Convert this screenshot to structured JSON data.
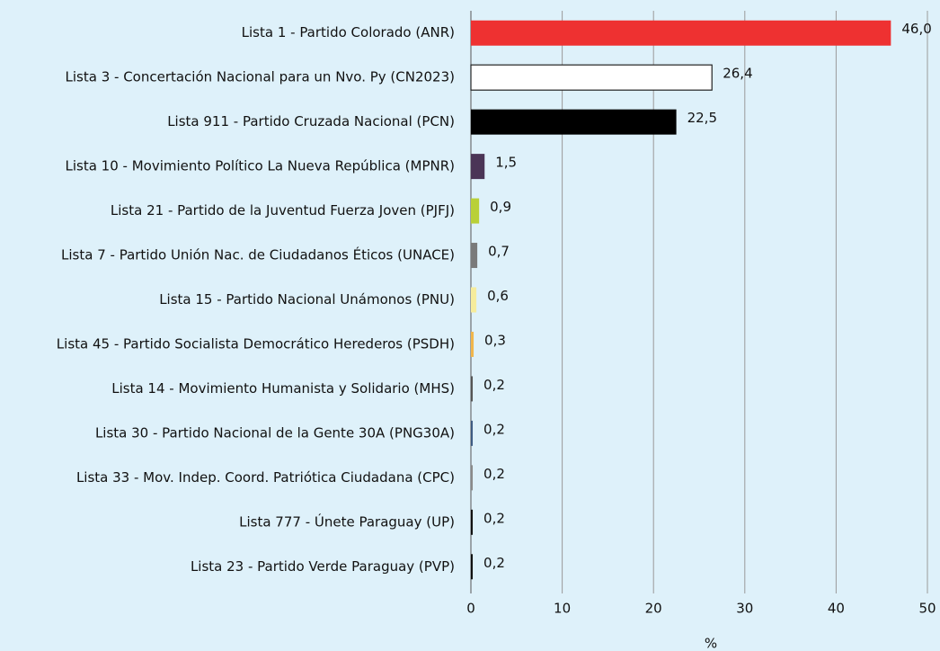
{
  "chart_data": {
    "type": "barh",
    "categories": [
      "Lista 1 - Partido Colorado (ANR)",
      "Lista 3 - Concertación Nacional para un Nvo. Py (CN2023)",
      "Lista 911 - Partido Cruzada Nacional (PCN)",
      "Lista 10 - Movimiento Político La Nueva República (MPNR)",
      "Lista 21 - Partido de la Juventud Fuerza Joven (PJFJ)",
      "Lista 7 - Partido Unión Nac. de Ciudadanos Éticos (UNACE)",
      "Lista 15 - Partido Nacional Unámonos (PNU)",
      "Lista 45 - Partido Socialista Democrático Herederos (PSDH)",
      "Lista 14 - Movimiento Humanista y Solidario (MHS)",
      "Lista 30 - Partido Nacional de la Gente 30A (PNG30A)",
      "Lista 33 - Mov. Indep. Coord. Patriótica Ciudadana (CPC)",
      "Lista 777 - Únete Paraguay (UP)",
      "Lista 23 - Partido Verde Paraguay (PVP)"
    ],
    "values": [
      46.0,
      26.4,
      22.5,
      1.5,
      0.9,
      0.7,
      0.6,
      0.3,
      0.2,
      0.2,
      0.2,
      0.2,
      0.2
    ],
    "value_labels": [
      "46,0",
      "26,4",
      "22,5",
      "1,5",
      "0,9",
      "0,7",
      "0,6",
      "0,3",
      "0,2",
      "0,2",
      "0,2",
      "0,2",
      "0,2"
    ],
    "colors": [
      "#ee3131",
      "#ffffff",
      "#000000",
      "#4b3556",
      "#b9d038",
      "#7a7a7a",
      "#f6ec9c",
      "#f1b64b",
      "#555555",
      "#3e5b82",
      "#8a8a8a",
      "#111111",
      "#111111"
    ],
    "xlabel": "%",
    "xlim": [
      0,
      50
    ],
    "xticks": [
      0,
      10,
      20,
      30,
      40,
      50
    ],
    "grid": true
  }
}
